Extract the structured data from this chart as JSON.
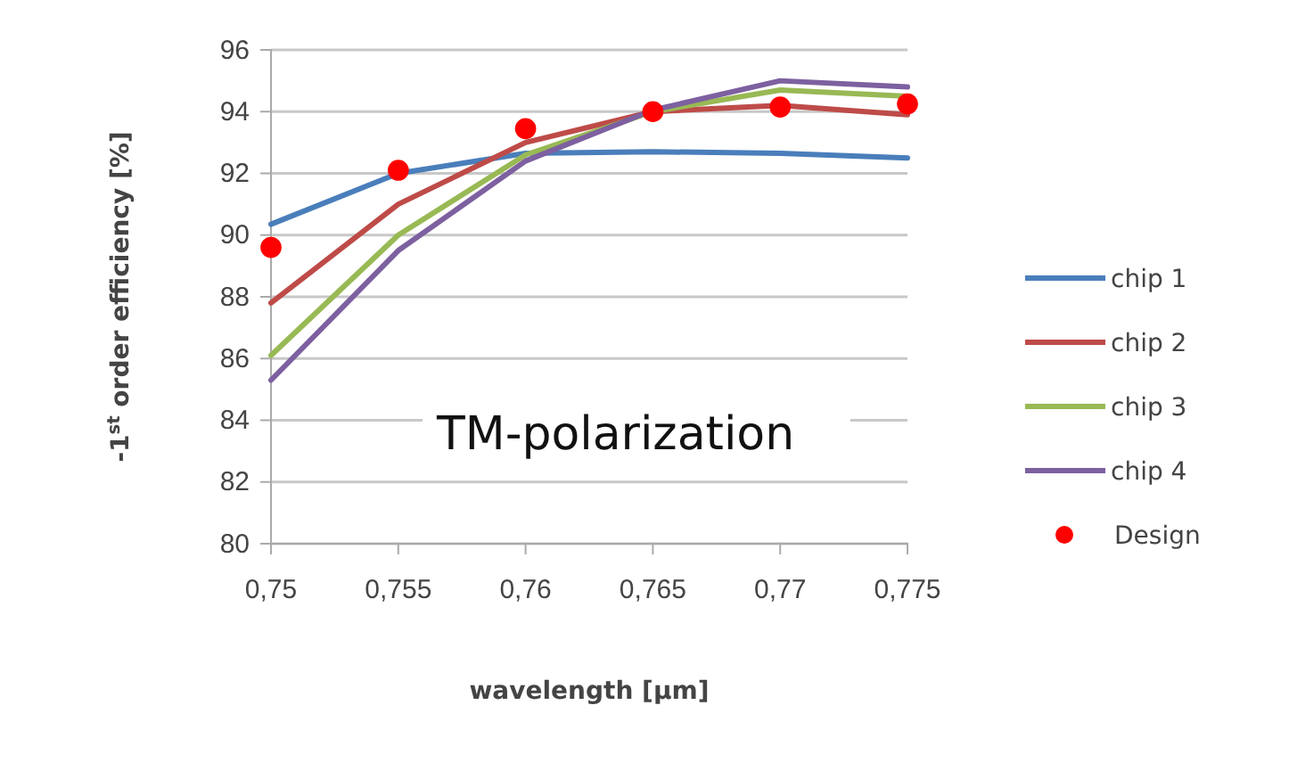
{
  "chart_data": {
    "type": "line",
    "xlabel": "wavelength [µm]",
    "ylabel": "-1$^{st}$ order efficiency [%]",
    "annotations": [
      "TM-polarization"
    ],
    "x": [
      0.75,
      0.755,
      0.76,
      0.765,
      0.77,
      0.775
    ],
    "series": [
      {
        "name": "chip 1",
        "color": "#4a7ebb",
        "values": [
          90.35,
          92.0,
          92.65,
          92.7,
          92.65,
          92.5
        ]
      },
      {
        "name": "chip 2",
        "color": "#be4b48",
        "values": [
          87.8,
          91.0,
          93.0,
          94.0,
          94.2,
          93.9
        ]
      },
      {
        "name": "chip 3",
        "color": "#98b954",
        "values": [
          86.1,
          90.0,
          92.6,
          94.0,
          94.7,
          94.5
        ]
      },
      {
        "name": "chip 4",
        "color": "#7d60a0",
        "values": [
          85.3,
          89.5,
          92.4,
          94.05,
          95.0,
          94.8
        ]
      },
      {
        "name": "Design",
        "type": "scatter",
        "marker": "circle",
        "color": "#ff0000",
        "values": [
          89.6,
          92.1,
          93.45,
          94.0,
          94.15,
          94.25
        ]
      }
    ],
    "xlim": [
      0.75,
      0.775
    ],
    "xticks": [
      {
        "value": 0.75,
        "label": "0,75"
      },
      {
        "value": 0.755,
        "label": "0,755"
      },
      {
        "value": 0.76,
        "label": "0,76"
      },
      {
        "value": 0.765,
        "label": "0,765"
      },
      {
        "value": 0.77,
        "label": "0,77"
      },
      {
        "value": 0.775,
        "label": "0,775"
      }
    ],
    "ylim": [
      80,
      96
    ],
    "yticks": [
      80,
      82,
      84,
      86,
      88,
      90,
      92,
      94,
      96
    ],
    "grid": "y",
    "legend": "right"
  }
}
